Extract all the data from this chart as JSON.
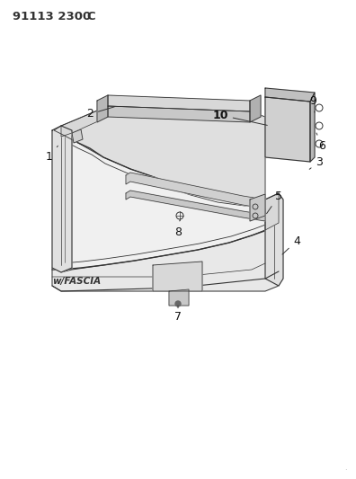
{
  "title": "91113 2300",
  "title_suffix": "C",
  "bg_color": "#ffffff",
  "lc": "#333333",
  "label_color": "#111111",
  "annotation": "w/FASCIA",
  "figsize": [
    3.96,
    5.33
  ],
  "dpi": 100,
  "ylim": [
    0,
    533
  ],
  "xlim": [
    0,
    396
  ]
}
